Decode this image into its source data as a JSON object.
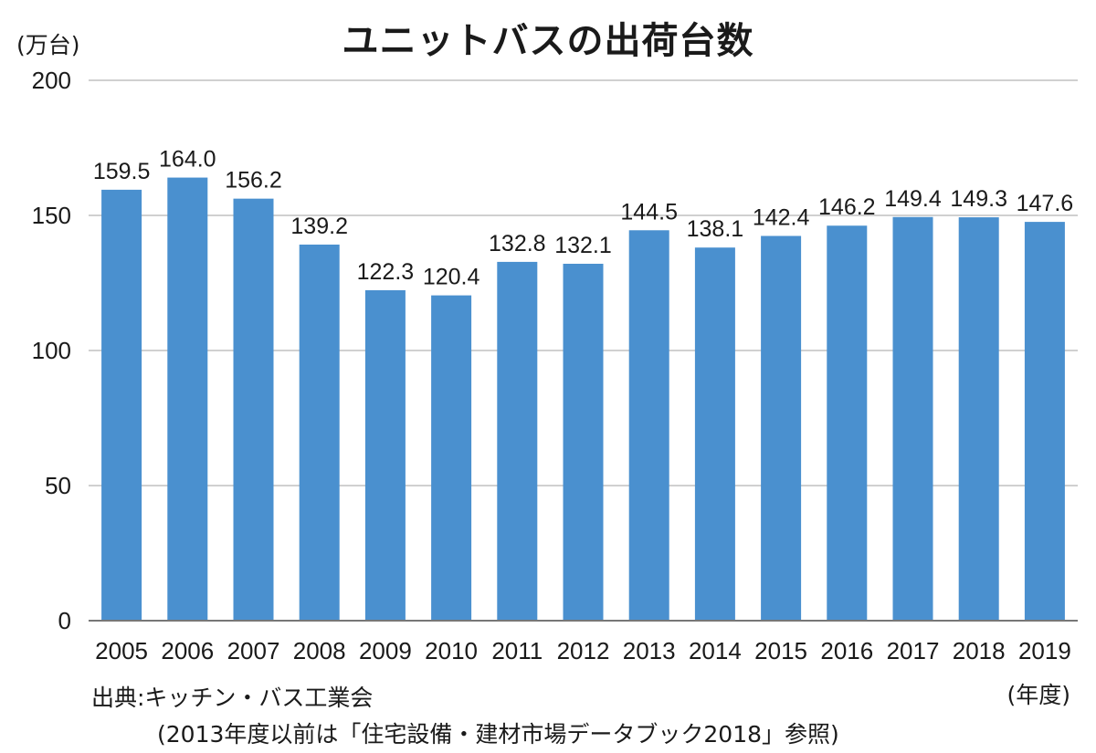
{
  "chart_data": {
    "type": "bar",
    "title": "ユニットバスの出荷台数",
    "ylabel": "(万台)",
    "xlabel": "(年度)",
    "ylim": [
      0,
      200
    ],
    "yticks": [
      0,
      50,
      100,
      150,
      200
    ],
    "categories": [
      "2005",
      "2006",
      "2007",
      "2008",
      "2009",
      "2010",
      "2011",
      "2012",
      "2013",
      "2014",
      "2015",
      "2016",
      "2017",
      "2018",
      "2019"
    ],
    "values": [
      159.5,
      164.0,
      156.2,
      139.2,
      122.3,
      120.4,
      132.8,
      132.1,
      144.5,
      138.1,
      142.4,
      146.2,
      149.4,
      149.3,
      147.6
    ],
    "value_labels": [
      "159.5",
      "164.0",
      "156.2",
      "139.2",
      "122.3",
      "120.4",
      "132.8",
      "132.1",
      "144.5",
      "138.1",
      "142.4",
      "146.2",
      "149.4",
      "149.3",
      "147.6"
    ],
    "grid": true,
    "bar_color": "#4a90cf",
    "grid_color": "#d0d0d0",
    "axis_color": "#777777"
  },
  "source": {
    "line1": "出典:キッチン・バス工業会",
    "line2": "(2013年度以前は「住宅設備・建材市場データブック2018」参照)"
  }
}
